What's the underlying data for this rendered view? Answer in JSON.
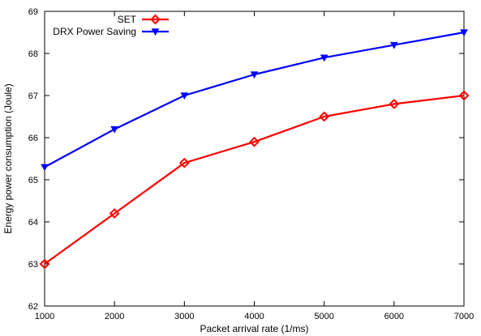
{
  "chart_data": {
    "type": "line",
    "title": "",
    "xlabel": "Packet arrival rate (1/ms)",
    "ylabel": "Energy power consumption (Joule)",
    "xlim": [
      1000,
      7000
    ],
    "ylim": [
      62,
      69
    ],
    "x_ticks": [
      1000,
      2000,
      3000,
      4000,
      5000,
      6000,
      7000
    ],
    "y_ticks": [
      62,
      63,
      64,
      65,
      66,
      67,
      68,
      69
    ],
    "grid": false,
    "legend_position": "top-left",
    "x": [
      1000,
      2000,
      3000,
      4000,
      5000,
      6000,
      7000
    ],
    "series": [
      {
        "name": "SET",
        "values": [
          63.0,
          64.2,
          65.4,
          65.9,
          66.5,
          66.8,
          67.0
        ],
        "color": "#ff0000",
        "marker": "diamond"
      },
      {
        "name": "DRX Power Saving",
        "values": [
          65.3,
          66.2,
          67.0,
          67.5,
          67.9,
          68.2,
          68.5
        ],
        "color": "#0000ff",
        "marker": "triangle-down"
      }
    ]
  }
}
